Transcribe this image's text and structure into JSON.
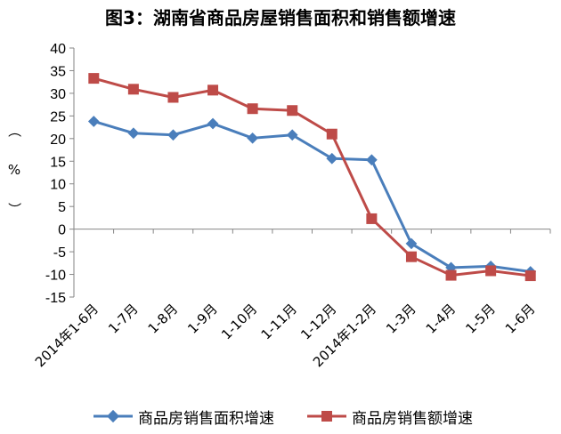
{
  "chart_data": {
    "type": "line",
    "title": "图3：湖南省商品房屋销售面积和销售额增速",
    "ylabel": "（%）",
    "ylabel_parts": [
      "（",
      "%",
      "）"
    ],
    "ylim": [
      -15,
      40
    ],
    "yticks": [
      40,
      35,
      30,
      25,
      20,
      15,
      10,
      5,
      0,
      -5,
      -10,
      -15
    ],
    "categories": [
      "2014年1-6月",
      "1-7月",
      "1-8月",
      "1-9月",
      "1-10月",
      "1-11月",
      "1-12月",
      "2014年1-2月",
      "1-3月",
      "1-4月",
      "1-5月",
      "1-6月"
    ],
    "series": [
      {
        "name": "商品房销售面积增速",
        "color": "#4a7ebb",
        "marker": "diamond",
        "values": [
          23.8,
          21.2,
          20.8,
          23.3,
          20.1,
          20.8,
          15.6,
          15.3,
          -3.2,
          -8.5,
          -8.2,
          -9.4
        ]
      },
      {
        "name": "商品房销售额增速",
        "color": "#be4b48",
        "marker": "square",
        "values": [
          33.3,
          30.9,
          29.1,
          30.7,
          26.6,
          26.2,
          21.0,
          2.3,
          -6.1,
          -10.2,
          -9.2,
          -10.3
        ]
      }
    ],
    "grid": false,
    "legend": "bottom"
  }
}
